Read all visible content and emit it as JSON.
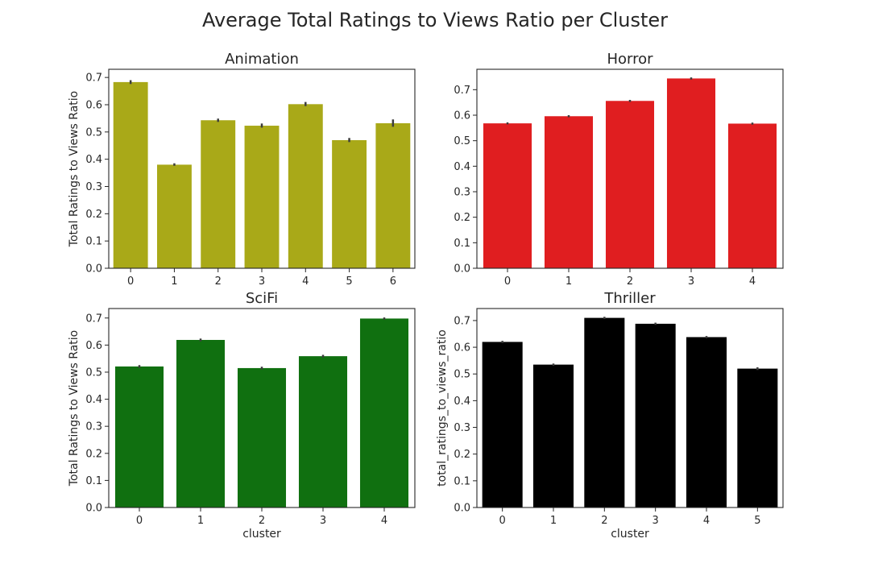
{
  "figure": {
    "title": "Average Total Ratings to Views Ratio per Cluster"
  },
  "chart_data": [
    {
      "type": "bar",
      "title": "Animation",
      "xlabel": "",
      "ylabel": "Total Ratings to Views Ratio",
      "categories": [
        "0",
        "1",
        "2",
        "3",
        "4",
        "5",
        "6"
      ],
      "values": [
        0.683,
        0.38,
        0.543,
        0.523,
        0.602,
        0.47,
        0.532
      ],
      "errors": [
        [
          0.676,
          0.69
        ],
        [
          0.376,
          0.385
        ],
        [
          0.537,
          0.549
        ],
        [
          0.516,
          0.531
        ],
        [
          0.595,
          0.61
        ],
        [
          0.463,
          0.478
        ],
        [
          0.519,
          0.546
        ]
      ],
      "ylim": [
        0,
        0.73
      ],
      "yticks": [
        "0.0",
        "0.1",
        "0.2",
        "0.3",
        "0.4",
        "0.5",
        "0.6",
        "0.7"
      ],
      "color": "#a9a918",
      "grid": false
    },
    {
      "type": "bar",
      "title": "Horror",
      "xlabel": "",
      "ylabel": "",
      "categories": [
        "0",
        "1",
        "2",
        "3",
        "4"
      ],
      "values": [
        0.568,
        0.596,
        0.656,
        0.744,
        0.567
      ],
      "errors": [
        [
          0.564,
          0.572
        ],
        [
          0.592,
          0.6
        ],
        [
          0.652,
          0.66
        ],
        [
          0.74,
          0.748
        ],
        [
          0.563,
          0.571
        ]
      ],
      "ylim": [
        0,
        0.78
      ],
      "yticks": [
        "0.0",
        "0.1",
        "0.2",
        "0.3",
        "0.4",
        "0.5",
        "0.6",
        "0.7"
      ],
      "color": "#e01e20",
      "grid": false
    },
    {
      "type": "bar",
      "title": "SciFi",
      "xlabel": "cluster",
      "ylabel": "Total Ratings to Views Ratio",
      "categories": [
        "0",
        "1",
        "2",
        "3",
        "4"
      ],
      "values": [
        0.521,
        0.619,
        0.515,
        0.559,
        0.698
      ],
      "errors": [
        [
          0.516,
          0.526
        ],
        [
          0.614,
          0.624
        ],
        [
          0.51,
          0.52
        ],
        [
          0.554,
          0.564
        ],
        [
          0.694,
          0.702
        ]
      ],
      "ylim": [
        0,
        0.735
      ],
      "yticks": [
        "0.0",
        "0.1",
        "0.2",
        "0.3",
        "0.4",
        "0.5",
        "0.6",
        "0.7"
      ],
      "color": "#107010",
      "grid": false
    },
    {
      "type": "bar",
      "title": "Thriller",
      "xlabel": "cluster",
      "ylabel": "total_ratings_to_views_ratio",
      "categories": [
        "0",
        "1",
        "2",
        "3",
        "4",
        "5"
      ],
      "values": [
        0.62,
        0.535,
        0.71,
        0.688,
        0.638,
        0.52
      ],
      "errors": [
        [
          0.616,
          0.624
        ],
        [
          0.531,
          0.539
        ],
        [
          0.706,
          0.714
        ],
        [
          0.684,
          0.692
        ],
        [
          0.634,
          0.642
        ],
        [
          0.515,
          0.525
        ]
      ],
      "ylim": [
        0,
        0.745
      ],
      "yticks": [
        "0.0",
        "0.1",
        "0.2",
        "0.3",
        "0.4",
        "0.5",
        "0.6",
        "0.7"
      ],
      "color": "#000000",
      "grid": false
    }
  ]
}
